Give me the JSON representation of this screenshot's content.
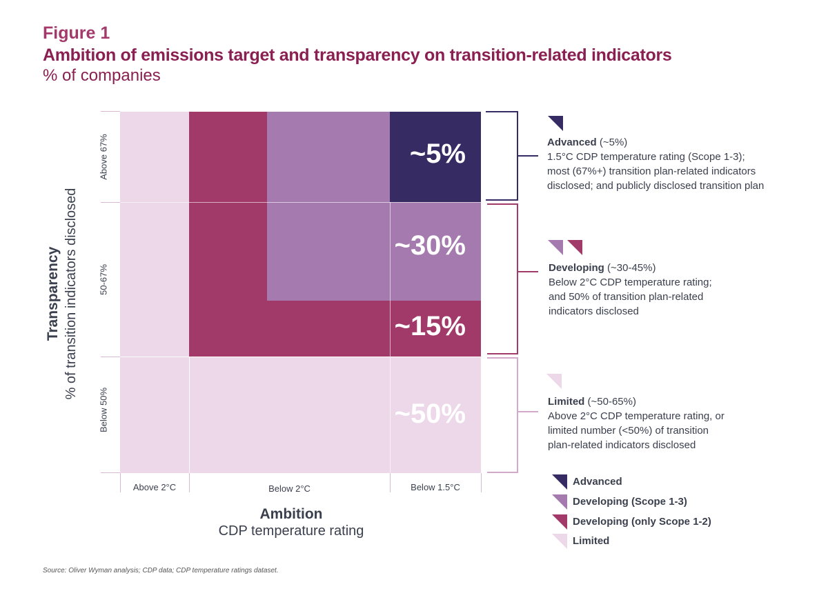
{
  "header": {
    "figure_label": "Figure 1",
    "title": "Ambition of emissions target and transparency on transition-related indicators",
    "subtitle": "% of companies"
  },
  "colors": {
    "advanced": "#372b64",
    "developing_scope_1_3": "#a57baf",
    "developing_only_scope_1_2": "#a23a69",
    "limited": "#ecd8e8"
  },
  "chart_data": {
    "type": "heatmap",
    "title": "Ambition of emissions target and transparency on transition-related indicators",
    "subtitle": "% of companies",
    "x_axis": {
      "label": "Ambition",
      "sublabel": "CDP temperature rating",
      "categories": [
        "Above 2°C",
        "Below 2°C",
        "Below 1.5°C"
      ]
    },
    "y_axis": {
      "label": "Transparency",
      "sublabel": "% of transition indicators disclosed",
      "categories": [
        "Below 50%",
        "50-67%",
        "Above 67%"
      ]
    },
    "regions": [
      {
        "name": "Advanced",
        "value_label": "~5%"
      },
      {
        "name": "Developing (Scope 1-3)",
        "value_label": "~30%"
      },
      {
        "name": "Developing (only Scope 1-2)",
        "value_label": "~15%"
      },
      {
        "name": "Limited",
        "value_label": "~50%"
      }
    ],
    "groups": [
      {
        "name": "Advanced",
        "range": "(~5%)",
        "description": [
          "1.5°C CDP temperature rating (Scope 1-3);",
          "most (67%+) transition plan-related indicators",
          "disclosed; and publicly disclosed transition plan"
        ]
      },
      {
        "name": "Developing",
        "range": "(~30-45%)",
        "description": [
          "Below 2°C CDP temperature rating;",
          "and 50% of transition plan-related",
          "indicators disclosed"
        ]
      },
      {
        "name": "Limited",
        "range": "(~50-65%)",
        "description": [
          "Above 2°C CDP temperature rating, or",
          "limited number (<50%) of transition",
          "plan-related indicators disclosed"
        ]
      }
    ],
    "legend": [
      "Advanced",
      "Developing (Scope 1-3)",
      "Developing (only Scope 1-2)",
      "Limited"
    ]
  },
  "source": "Source: Oliver Wyman analysis; CDP data; CDP temperature ratings dataset."
}
